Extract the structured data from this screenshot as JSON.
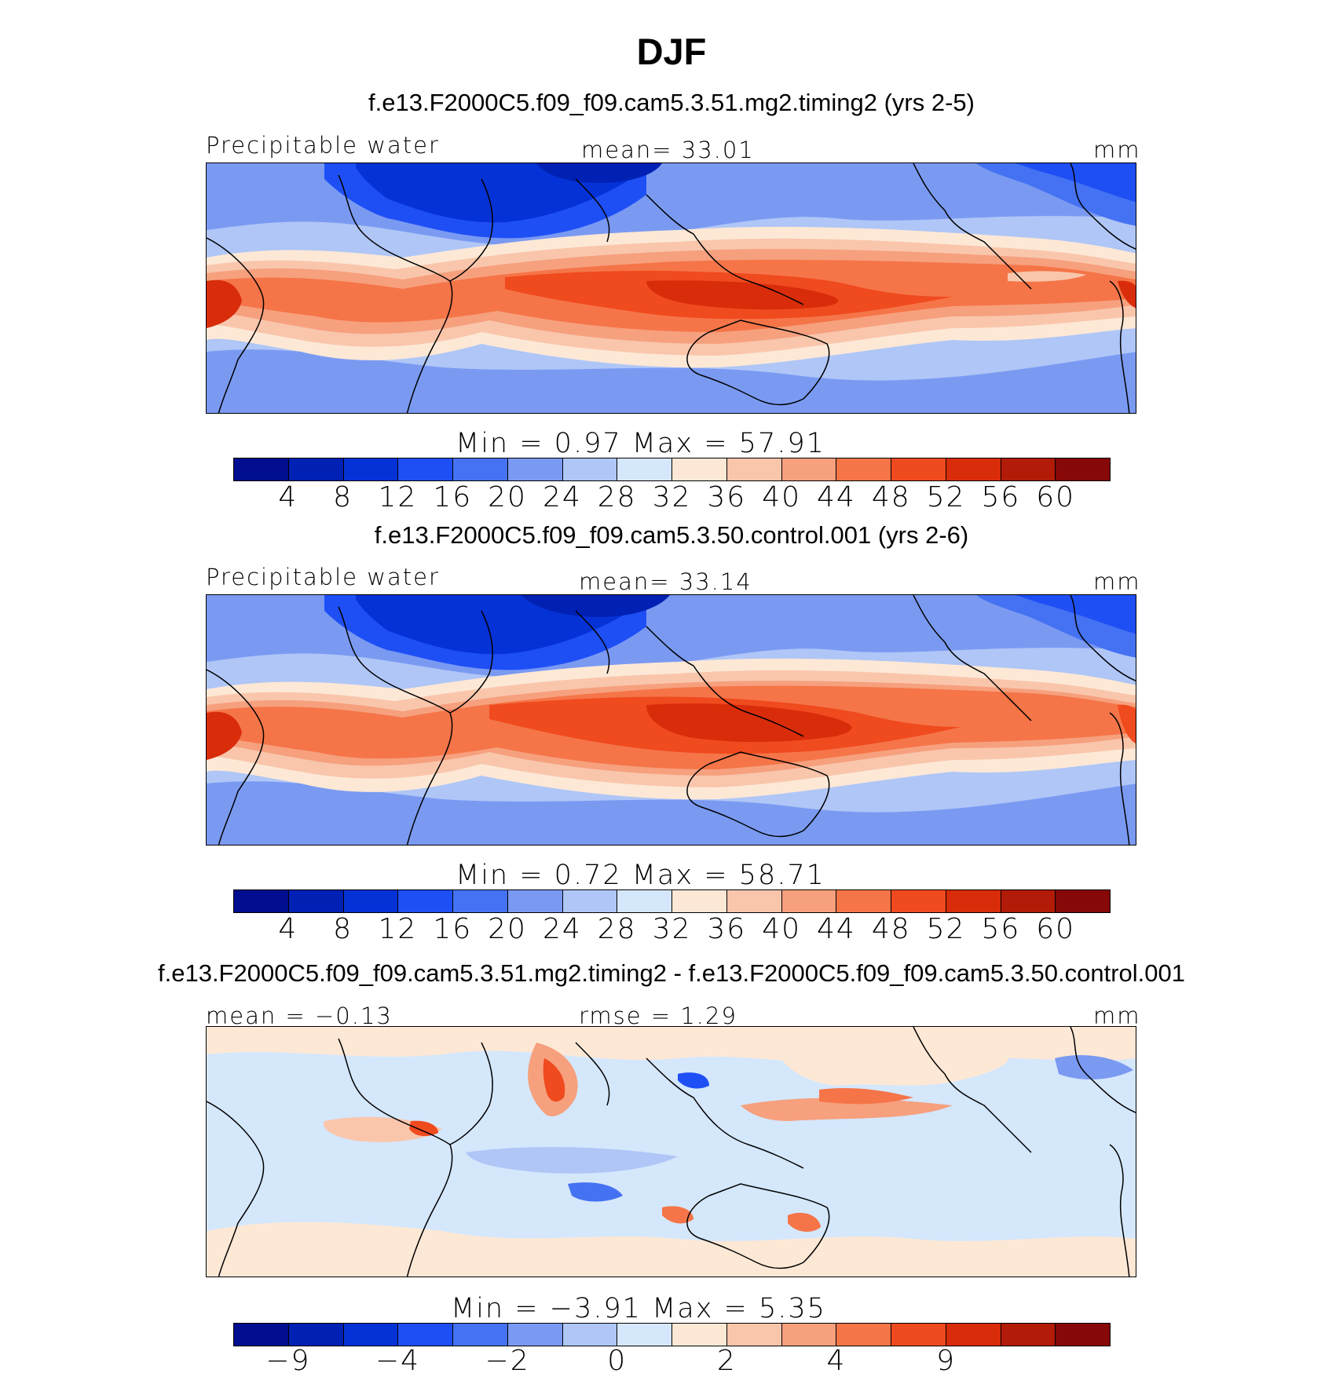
{
  "title": "DJF",
  "palette": [
    "#000e8f",
    "#0021b3",
    "#0532d6",
    "#1e4ff5",
    "#4572f2",
    "#7a9af2",
    "#afc6f7",
    "#d5e7fb",
    "#fde8d6",
    "#f9c6ac",
    "#f6a07e",
    "#f57548",
    "#f04a1f",
    "#d92c0a",
    "#b21b07",
    "#870808"
  ],
  "panels": [
    {
      "case_title": "f.e13.F2000C5.f09_f09.cam5.3.51.mg2.timing2 (yrs 2-5)",
      "left_label": "Precipitable water",
      "center_label": "mean=   33.01",
      "right_label": "mm",
      "min_max": "Min  =     0.97  Max  =    57.91",
      "colorbar_ticks": [
        "4",
        "8",
        "12",
        "16",
        "20",
        "24",
        "28",
        "32",
        "36",
        "40",
        "44",
        "48",
        "52",
        "56",
        "60"
      ],
      "field": "absolute"
    },
    {
      "case_title": "f.e13.F2000C5.f09_f09.cam5.3.50.control.001 (yrs 2-6)",
      "left_label": "Precipitable water",
      "center_label": "mean=   33.14",
      "right_label": "mm",
      "min_max": "Min  =     0.72  Max  =    58.71",
      "colorbar_ticks": [
        "4",
        "8",
        "12",
        "16",
        "20",
        "24",
        "28",
        "32",
        "36",
        "40",
        "44",
        "48",
        "52",
        "56",
        "60"
      ],
      "field": "absolute"
    },
    {
      "case_title": "f.e13.F2000C5.f09_f09.cam5.3.51.mg2.timing2 - f.e13.F2000C5.f09_f09.cam5.3.50.control.001",
      "left_label": "mean  =   −0.13",
      "center_label": "rmse  =     1.29",
      "right_label": "mm",
      "min_max": "Min  =   −3.91  Max  =     5.35",
      "colorbar_ticks": [
        "−9",
        "",
        "−4",
        "",
        "−2",
        "",
        "0",
        "",
        "2",
        "",
        "4",
        "",
        "9",
        ""
      ],
      "colorbar_tick_positions": [
        1,
        3,
        5,
        7,
        9,
        11,
        13
      ],
      "field": "difference"
    }
  ]
}
